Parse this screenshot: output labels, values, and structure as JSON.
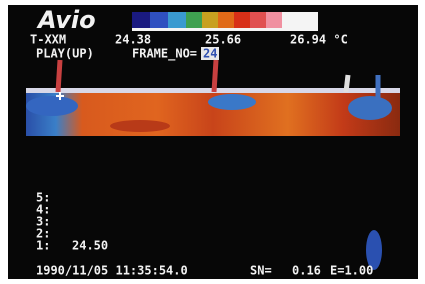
{
  "header": {
    "logo": "Avio",
    "mode": "T-XXM",
    "scale_min": "24.38",
    "scale_mid": "25.66",
    "scale_max": "26.94 °C",
    "playback": "PLAY(UP)",
    "frame_label": "FRAME_NO=",
    "frame_no": "24"
  },
  "measurements": {
    "slots": [
      "5:",
      "4:",
      "3:",
      "2:",
      "1:"
    ],
    "slot1_value": "24.50"
  },
  "footer": {
    "datetime": "1990/11/05 11:35:54.0",
    "sn_label": "SN=",
    "sn_value": "0.16",
    "emissivity": "E=1.00"
  }
}
